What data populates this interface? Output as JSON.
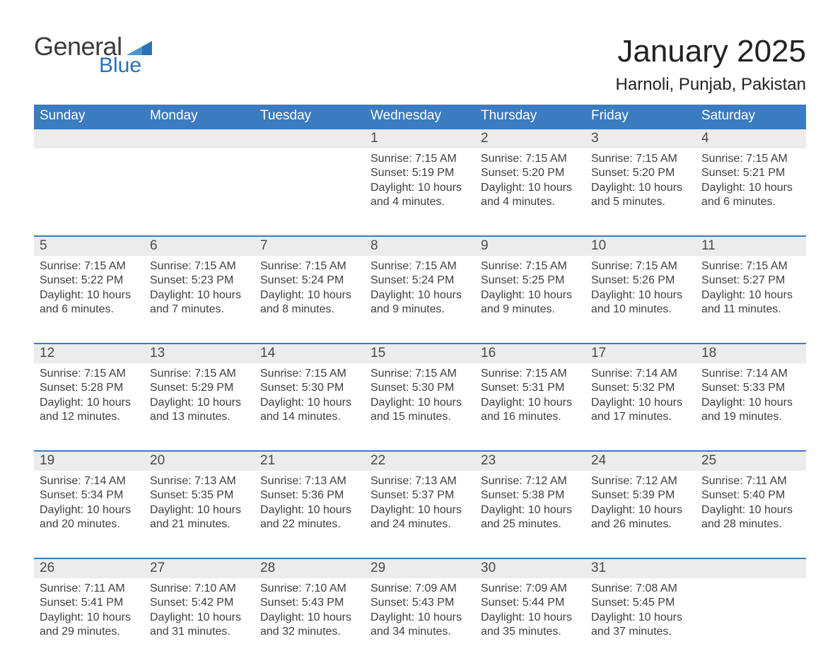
{
  "brand": {
    "line1": "General",
    "line2": "Blue",
    "logo_color": "#2a72b5"
  },
  "header": {
    "month_title": "January 2025",
    "location": "Harnoli, Punjab, Pakistan"
  },
  "colors": {
    "header_bg": "#3b7bbf",
    "header_text": "#ffffff",
    "daynum_bg": "#ececec",
    "row_border": "#3b7bbf",
    "body_text": "#3f3f3f",
    "page_bg": "#ffffff"
  },
  "day_names": [
    "Sunday",
    "Monday",
    "Tuesday",
    "Wednesday",
    "Thursday",
    "Friday",
    "Saturday"
  ],
  "weeks": [
    [
      null,
      null,
      null,
      {
        "n": "1",
        "sr": "Sunrise: 7:15 AM",
        "ss": "Sunset: 5:19 PM",
        "d1": "Daylight: 10 hours",
        "d2": "and 4 minutes."
      },
      {
        "n": "2",
        "sr": "Sunrise: 7:15 AM",
        "ss": "Sunset: 5:20 PM",
        "d1": "Daylight: 10 hours",
        "d2": "and 4 minutes."
      },
      {
        "n": "3",
        "sr": "Sunrise: 7:15 AM",
        "ss": "Sunset: 5:20 PM",
        "d1": "Daylight: 10 hours",
        "d2": "and 5 minutes."
      },
      {
        "n": "4",
        "sr": "Sunrise: 7:15 AM",
        "ss": "Sunset: 5:21 PM",
        "d1": "Daylight: 10 hours",
        "d2": "and 6 minutes."
      }
    ],
    [
      {
        "n": "5",
        "sr": "Sunrise: 7:15 AM",
        "ss": "Sunset: 5:22 PM",
        "d1": "Daylight: 10 hours",
        "d2": "and 6 minutes."
      },
      {
        "n": "6",
        "sr": "Sunrise: 7:15 AM",
        "ss": "Sunset: 5:23 PM",
        "d1": "Daylight: 10 hours",
        "d2": "and 7 minutes."
      },
      {
        "n": "7",
        "sr": "Sunrise: 7:15 AM",
        "ss": "Sunset: 5:24 PM",
        "d1": "Daylight: 10 hours",
        "d2": "and 8 minutes."
      },
      {
        "n": "8",
        "sr": "Sunrise: 7:15 AM",
        "ss": "Sunset: 5:24 PM",
        "d1": "Daylight: 10 hours",
        "d2": "and 9 minutes."
      },
      {
        "n": "9",
        "sr": "Sunrise: 7:15 AM",
        "ss": "Sunset: 5:25 PM",
        "d1": "Daylight: 10 hours",
        "d2": "and 9 minutes."
      },
      {
        "n": "10",
        "sr": "Sunrise: 7:15 AM",
        "ss": "Sunset: 5:26 PM",
        "d1": "Daylight: 10 hours",
        "d2": "and 10 minutes."
      },
      {
        "n": "11",
        "sr": "Sunrise: 7:15 AM",
        "ss": "Sunset: 5:27 PM",
        "d1": "Daylight: 10 hours",
        "d2": "and 11 minutes."
      }
    ],
    [
      {
        "n": "12",
        "sr": "Sunrise: 7:15 AM",
        "ss": "Sunset: 5:28 PM",
        "d1": "Daylight: 10 hours",
        "d2": "and 12 minutes."
      },
      {
        "n": "13",
        "sr": "Sunrise: 7:15 AM",
        "ss": "Sunset: 5:29 PM",
        "d1": "Daylight: 10 hours",
        "d2": "and 13 minutes."
      },
      {
        "n": "14",
        "sr": "Sunrise: 7:15 AM",
        "ss": "Sunset: 5:30 PM",
        "d1": "Daylight: 10 hours",
        "d2": "and 14 minutes."
      },
      {
        "n": "15",
        "sr": "Sunrise: 7:15 AM",
        "ss": "Sunset: 5:30 PM",
        "d1": "Daylight: 10 hours",
        "d2": "and 15 minutes."
      },
      {
        "n": "16",
        "sr": "Sunrise: 7:15 AM",
        "ss": "Sunset: 5:31 PM",
        "d1": "Daylight: 10 hours",
        "d2": "and 16 minutes."
      },
      {
        "n": "17",
        "sr": "Sunrise: 7:14 AM",
        "ss": "Sunset: 5:32 PM",
        "d1": "Daylight: 10 hours",
        "d2": "and 17 minutes."
      },
      {
        "n": "18",
        "sr": "Sunrise: 7:14 AM",
        "ss": "Sunset: 5:33 PM",
        "d1": "Daylight: 10 hours",
        "d2": "and 19 minutes."
      }
    ],
    [
      {
        "n": "19",
        "sr": "Sunrise: 7:14 AM",
        "ss": "Sunset: 5:34 PM",
        "d1": "Daylight: 10 hours",
        "d2": "and 20 minutes."
      },
      {
        "n": "20",
        "sr": "Sunrise: 7:13 AM",
        "ss": "Sunset: 5:35 PM",
        "d1": "Daylight: 10 hours",
        "d2": "and 21 minutes."
      },
      {
        "n": "21",
        "sr": "Sunrise: 7:13 AM",
        "ss": "Sunset: 5:36 PM",
        "d1": "Daylight: 10 hours",
        "d2": "and 22 minutes."
      },
      {
        "n": "22",
        "sr": "Sunrise: 7:13 AM",
        "ss": "Sunset: 5:37 PM",
        "d1": "Daylight: 10 hours",
        "d2": "and 24 minutes."
      },
      {
        "n": "23",
        "sr": "Sunrise: 7:12 AM",
        "ss": "Sunset: 5:38 PM",
        "d1": "Daylight: 10 hours",
        "d2": "and 25 minutes."
      },
      {
        "n": "24",
        "sr": "Sunrise: 7:12 AM",
        "ss": "Sunset: 5:39 PM",
        "d1": "Daylight: 10 hours",
        "d2": "and 26 minutes."
      },
      {
        "n": "25",
        "sr": "Sunrise: 7:11 AM",
        "ss": "Sunset: 5:40 PM",
        "d1": "Daylight: 10 hours",
        "d2": "and 28 minutes."
      }
    ],
    [
      {
        "n": "26",
        "sr": "Sunrise: 7:11 AM",
        "ss": "Sunset: 5:41 PM",
        "d1": "Daylight: 10 hours",
        "d2": "and 29 minutes."
      },
      {
        "n": "27",
        "sr": "Sunrise: 7:10 AM",
        "ss": "Sunset: 5:42 PM",
        "d1": "Daylight: 10 hours",
        "d2": "and 31 minutes."
      },
      {
        "n": "28",
        "sr": "Sunrise: 7:10 AM",
        "ss": "Sunset: 5:43 PM",
        "d1": "Daylight: 10 hours",
        "d2": "and 32 minutes."
      },
      {
        "n": "29",
        "sr": "Sunrise: 7:09 AM",
        "ss": "Sunset: 5:43 PM",
        "d1": "Daylight: 10 hours",
        "d2": "and 34 minutes."
      },
      {
        "n": "30",
        "sr": "Sunrise: 7:09 AM",
        "ss": "Sunset: 5:44 PM",
        "d1": "Daylight: 10 hours",
        "d2": "and 35 minutes."
      },
      {
        "n": "31",
        "sr": "Sunrise: 7:08 AM",
        "ss": "Sunset: 5:45 PM",
        "d1": "Daylight: 10 hours",
        "d2": "and 37 minutes."
      },
      null
    ]
  ]
}
